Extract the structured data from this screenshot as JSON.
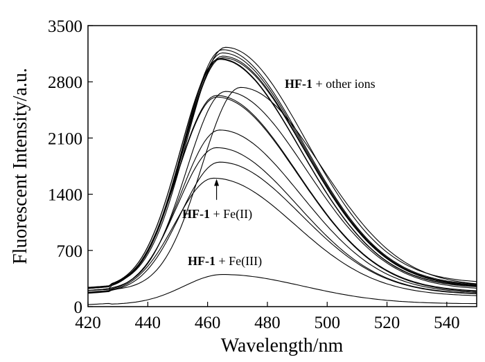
{
  "chart_data": {
    "type": "line",
    "xlabel": "Wavelength/nm",
    "ylabel": "Fluorescent Intensity/a.u.",
    "xlim": [
      420,
      550
    ],
    "ylim": [
      0,
      3500
    ],
    "xticks": [
      420,
      440,
      460,
      480,
      500,
      520,
      540
    ],
    "yticks": [
      0,
      700,
      1400,
      2100,
      2800,
      3500
    ],
    "grid": false,
    "legend": "none",
    "series": [
      {
        "peak_x": 466,
        "peak_y": 3230,
        "start_y": 240,
        "end_y": 290
      },
      {
        "peak_x": 465,
        "peak_y": 3200,
        "start_y": 235,
        "end_y": 260
      },
      {
        "peak_x": 465,
        "peak_y": 3160,
        "start_y": 230,
        "end_y": 250
      },
      {
        "peak_x": 465,
        "peak_y": 3120,
        "start_y": 230,
        "end_y": 245
      },
      {
        "peak_x": 465,
        "peak_y": 3100,
        "start_y": 225,
        "end_y": 240
      },
      {
        "peak_x": 464,
        "peak_y": 3090,
        "start_y": 225,
        "end_y": 235
      },
      {
        "peak_x": 464,
        "peak_y": 3080,
        "start_y": 225,
        "end_y": 230
      },
      {
        "peak_x": 471,
        "peak_y": 2730,
        "start_y": 200,
        "end_y": 250
      },
      {
        "peak_x": 466,
        "peak_y": 2680,
        "start_y": 200,
        "end_y": 210
      },
      {
        "peak_x": 463,
        "peak_y": 2630,
        "start_y": 200,
        "end_y": 185
      },
      {
        "peak_x": 463,
        "peak_y": 2610,
        "start_y": 200,
        "end_y": 175
      },
      {
        "peak_x": 464,
        "peak_y": 2200,
        "start_y": 180,
        "end_y": 165
      },
      {
        "peak_x": 463,
        "peak_y": 1980,
        "start_y": 175,
        "end_y": 155
      },
      {
        "peak_x": 464,
        "peak_y": 1800,
        "start_y": 170,
        "end_y": 150
      },
      {
        "peak_x": 462,
        "peak_y": 1600,
        "start_y": 165,
        "end_y": 130
      },
      {
        "peak_x": 465,
        "peak_y": 400,
        "start_y": 25,
        "end_y": 35
      }
    ],
    "annotations": [
      {
        "bold": "HF-1",
        "text": " + other ions"
      },
      {
        "bold": "HF-1",
        "text": " + Fe(II)"
      },
      {
        "bold": "HF-1",
        "text": " + Fe(III)"
      }
    ],
    "arrow": {
      "x": 463,
      "from_y": 1330,
      "to_y": 1590
    }
  }
}
